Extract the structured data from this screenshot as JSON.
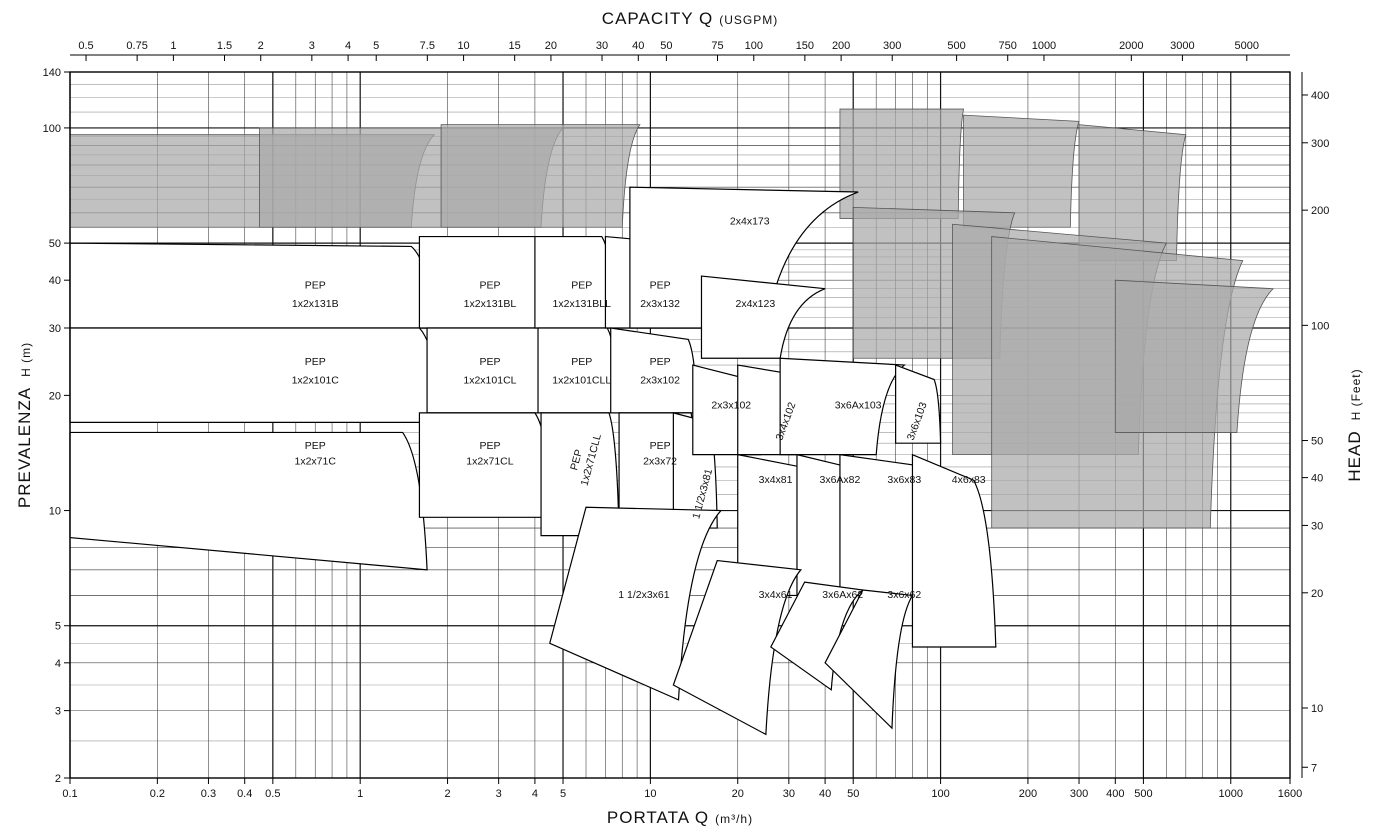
{
  "chart_data": {
    "type": "pump-performance-selection-chart",
    "x_scale": "log",
    "y_scale": "log",
    "grid": true,
    "x_axis_bottom": {
      "title_main": "PORTATA  Q",
      "title_unit": "(m³/h)",
      "range": [
        0.1,
        1600
      ],
      "ticks": [
        0.1,
        0.2,
        0.3,
        0.4,
        0.5,
        1,
        2,
        3,
        4,
        5,
        10,
        20,
        30,
        40,
        50,
        100,
        200,
        300,
        400,
        500,
        1000,
        1600
      ],
      "tick_labels": [
        "0.1",
        "0.2",
        "0.3",
        "0.4",
        "0.5",
        "1",
        "2",
        "3",
        "4",
        "5",
        "10",
        "20",
        "30",
        "40",
        "50",
        "100",
        "200",
        "300",
        "400",
        "500",
        "1000",
        "1600"
      ]
    },
    "x_axis_top": {
      "title_main": "CAPACITY  Q",
      "title_unit": "(USGPM)",
      "ticks": [
        0.5,
        0.75,
        1,
        1.5,
        2,
        3,
        4,
        5,
        7.5,
        10,
        15,
        20,
        30,
        40,
        50,
        75,
        100,
        150,
        200,
        300,
        500,
        750,
        1000,
        2000,
        3000,
        5000
      ],
      "tick_labels": [
        "0.5",
        "0.75",
        "1",
        "1.5",
        "2",
        "3",
        "4",
        "5",
        "7.5",
        "10",
        "15",
        "20",
        "30",
        "40",
        "50",
        "75",
        "100",
        "150",
        "200",
        "300",
        "500",
        "750",
        "1000",
        "2000",
        "3000",
        "5000"
      ]
    },
    "y_axis_left": {
      "title_main": "PREVALENZA",
      "title_unit": "H  (m)",
      "range": [
        2,
        140
      ],
      "ticks": [
        2,
        3,
        4,
        5,
        10,
        20,
        30,
        40,
        50,
        100,
        140
      ],
      "tick_labels": [
        "2",
        "3",
        "4",
        "5",
        "10",
        "20",
        "30",
        "40",
        "50",
        "100",
        "140"
      ]
    },
    "y_axis_right": {
      "title_main": "HEAD",
      "title_unit": "H  (Feet)",
      "ticks": [
        7,
        10,
        20,
        30,
        40,
        50,
        100,
        200,
        300,
        400
      ],
      "tick_labels": [
        "7",
        "10",
        "20",
        "30",
        "40",
        "50",
        "100",
        "200",
        "300",
        "400"
      ]
    },
    "fill_colors": {
      "selection_area": "#ffffff",
      "extended_range": "#a9a9a9",
      "outline": "#000000"
    },
    "grey_regions": [
      {
        "q": [
          0.1,
          1.8,
          1.5,
          0.1
        ],
        "h": [
          96,
          96,
          55,
          55
        ]
      },
      {
        "q": [
          0.45,
          5.0,
          4.2,
          0.45
        ],
        "h": [
          100,
          100,
          55,
          55
        ]
      },
      {
        "q": [
          1.9,
          9.2,
          8.0,
          1.9
        ],
        "h": [
          102,
          102,
          55,
          55
        ]
      },
      {
        "q": [
          45,
          120,
          115,
          45
        ],
        "h": [
          112,
          112,
          58,
          58
        ]
      },
      {
        "q": [
          120,
          300,
          280,
          120
        ],
        "h": [
          108,
          104,
          55,
          55
        ]
      },
      {
        "q": [
          300,
          700,
          650,
          300
        ],
        "h": [
          102,
          96,
          45,
          45
        ]
      },
      {
        "q": [
          50,
          180,
          160,
          50
        ],
        "h": [
          62,
          60,
          25,
          25
        ]
      },
      {
        "q": [
          110,
          600,
          480,
          110
        ],
        "h": [
          56,
          50,
          14,
          14
        ]
      },
      {
        "q": [
          150,
          1100,
          850,
          150
        ],
        "h": [
          52,
          45,
          9,
          9
        ]
      },
      {
        "q": [
          400,
          1400,
          1050,
          400
        ],
        "h": [
          40,
          38,
          16,
          16
        ]
      }
    ],
    "white_regions": [
      {
        "q": [
          0.1,
          1.5,
          1.8,
          0.1
        ],
        "h": [
          50,
          49,
          30,
          30
        ]
      },
      {
        "q": [
          0.1,
          1.6,
          1.9,
          0.1
        ],
        "h": [
          30,
          30,
          17,
          17
        ]
      },
      {
        "q": [
          0.1,
          1.4,
          1.7,
          0.1
        ],
        "h": [
          16,
          16,
          7,
          8.5
        ]
      },
      {
        "q": [
          1.6,
          4.0,
          4.5,
          1.6
        ],
        "h": [
          52,
          52,
          30,
          30
        ]
      },
      {
        "q": [
          1.7,
          4.1,
          4.6,
          1.7
        ],
        "h": [
          30,
          30,
          18,
          18
        ]
      },
      {
        "q": [
          1.6,
          4.0,
          4.6,
          1.6
        ],
        "h": [
          18,
          18,
          9.6,
          9.6
        ]
      },
      {
        "q": [
          4.0,
          6.8,
          7.6,
          4.0
        ],
        "h": [
          52,
          52,
          30,
          30
        ]
      },
      {
        "q": [
          4.1,
          7.1,
          7.8,
          4.1
        ],
        "h": [
          30,
          30,
          18,
          18
        ]
      },
      {
        "q": [
          4.2,
          7.2,
          7.8,
          4.2
        ],
        "h": [
          18,
          18,
          8.6,
          8.6
        ]
      },
      {
        "q": [
          7.0,
          12.5,
          15.0,
          7.0
        ],
        "h": [
          52,
          50,
          30,
          30
        ]
      },
      {
        "q": [
          7.3,
          13.5,
          14.5,
          7.3
        ],
        "h": [
          30,
          28,
          18,
          18
        ]
      },
      {
        "q": [
          7.8,
          13.8,
          14.5,
          7.8
        ],
        "h": [
          18,
          18,
          9.4,
          9.4
        ]
      },
      {
        "q": [
          12.0,
          16.0,
          17.0,
          12.0
        ],
        "h": [
          18,
          17,
          9.0,
          9.0
        ]
      },
      {
        "q": [
          8.5,
          52,
          25,
          8.5
        ],
        "h": [
          70,
          68,
          30,
          30
        ]
      },
      {
        "q": [
          15,
          40,
          28,
          15
        ],
        "h": [
          41,
          38,
          25,
          25
        ]
      },
      {
        "q": [
          14,
          22,
          24,
          14
        ],
        "h": [
          24,
          22,
          14,
          14
        ]
      },
      {
        "q": [
          20,
          28,
          32,
          20
        ],
        "h": [
          24,
          23,
          14,
          14
        ]
      },
      {
        "q": [
          28,
          75,
          60,
          28
        ],
        "h": [
          25,
          24,
          14,
          14
        ]
      },
      {
        "q": [
          70,
          95,
          100,
          70
        ],
        "h": [
          24,
          22,
          15,
          15
        ]
      },
      {
        "q": [
          20,
          33,
          34,
          20
        ],
        "h": [
          14,
          13,
          6,
          6
        ]
      },
      {
        "q": [
          32,
          48,
          52,
          32
        ],
        "h": [
          14,
          13,
          6,
          6
        ]
      },
      {
        "q": [
          45,
          90,
          90,
          45
        ],
        "h": [
          14,
          13,
          6,
          6
        ]
      },
      {
        "q": [
          80,
          130,
          155,
          80
        ],
        "h": [
          14,
          12,
          4.4,
          4.4
        ]
      },
      {
        "q": [
          6.0,
          17.5,
          12.5,
          4.5
        ],
        "h": [
          10.2,
          10.0,
          3.2,
          4.5
        ]
      },
      {
        "q": [
          17,
          33,
          25,
          12
        ],
        "h": [
          7.4,
          7.0,
          2.6,
          3.5
        ]
      },
      {
        "q": [
          34,
          54,
          42,
          26
        ],
        "h": [
          6.5,
          6.2,
          3.4,
          4.4
        ]
      },
      {
        "q": [
          54,
          80,
          68,
          40
        ],
        "h": [
          6.2,
          6.0,
          2.7,
          4.0
        ]
      }
    ],
    "curve_labels": [
      {
        "text": "PEP",
        "q": 0.7,
        "h": 38
      },
      {
        "text": "1x2x131B",
        "q": 0.7,
        "h": 34
      },
      {
        "text": "PEP",
        "q": 2.8,
        "h": 38
      },
      {
        "text": "1x2x131BL",
        "q": 2.8,
        "h": 34
      },
      {
        "text": "PEP",
        "q": 5.8,
        "h": 38
      },
      {
        "text": "1x2x131BLL",
        "q": 5.8,
        "h": 34
      },
      {
        "text": "PEP",
        "q": 10.8,
        "h": 38
      },
      {
        "text": "2x3x132",
        "q": 10.8,
        "h": 34
      },
      {
        "text": "2x4x173",
        "q": 22,
        "h": 56
      },
      {
        "text": "2x4x123",
        "q": 23,
        "h": 34
      },
      {
        "text": "PEP",
        "q": 0.7,
        "h": 24
      },
      {
        "text": "1x2x101C",
        "q": 0.7,
        "h": 21.5
      },
      {
        "text": "PEP",
        "q": 2.8,
        "h": 24
      },
      {
        "text": "1x2x101CL",
        "q": 2.8,
        "h": 21.5
      },
      {
        "text": "PEP",
        "q": 5.8,
        "h": 24
      },
      {
        "text": "1x2x101CLL",
        "q": 5.8,
        "h": 21.5
      },
      {
        "text": "PEP",
        "q": 10.8,
        "h": 24
      },
      {
        "text": "2x3x102",
        "q": 10.8,
        "h": 21.5
      },
      {
        "text": "2x3x102",
        "q": 19,
        "h": 18.5
      },
      {
        "text": "3x4x102",
        "q": 30,
        "h": 17,
        "rotate": -70
      },
      {
        "text": "3x6Ax103",
        "q": 52,
        "h": 18.5
      },
      {
        "text": "3x6x103",
        "q": 85,
        "h": 17,
        "rotate": -70
      },
      {
        "text": "PEP",
        "q": 0.7,
        "h": 14.5
      },
      {
        "text": "1x2x71C",
        "q": 0.7,
        "h": 13.2
      },
      {
        "text": "PEP",
        "q": 2.8,
        "h": 14.5
      },
      {
        "text": "1x2x71CL",
        "q": 2.8,
        "h": 13.2
      },
      {
        "text": "PEP",
        "q": 5.7,
        "h": 13.5,
        "rotate": -75
      },
      {
        "text": "1x2x71CLL",
        "q": 6.4,
        "h": 13.5,
        "rotate": -75
      },
      {
        "text": "PEP",
        "q": 10.8,
        "h": 14.5
      },
      {
        "text": "2x3x72",
        "q": 10.8,
        "h": 13.2
      },
      {
        "text": "1 1/2x3x81",
        "q": 15.5,
        "h": 11.0,
        "rotate": -75
      },
      {
        "text": "3x4x81",
        "q": 27,
        "h": 11.8
      },
      {
        "text": "3x6Ax82",
        "q": 45,
        "h": 11.8
      },
      {
        "text": "3x6x83",
        "q": 75,
        "h": 11.8
      },
      {
        "text": "4x6x83",
        "q": 125,
        "h": 11.8
      },
      {
        "text": "1 1/2x3x61",
        "q": 9.5,
        "h": 5.9
      },
      {
        "text": "3x4x61",
        "q": 27,
        "h": 5.9
      },
      {
        "text": "3x6Ax62",
        "q": 46,
        "h": 5.9
      },
      {
        "text": "3x6x62",
        "q": 75,
        "h": 5.9
      }
    ]
  }
}
